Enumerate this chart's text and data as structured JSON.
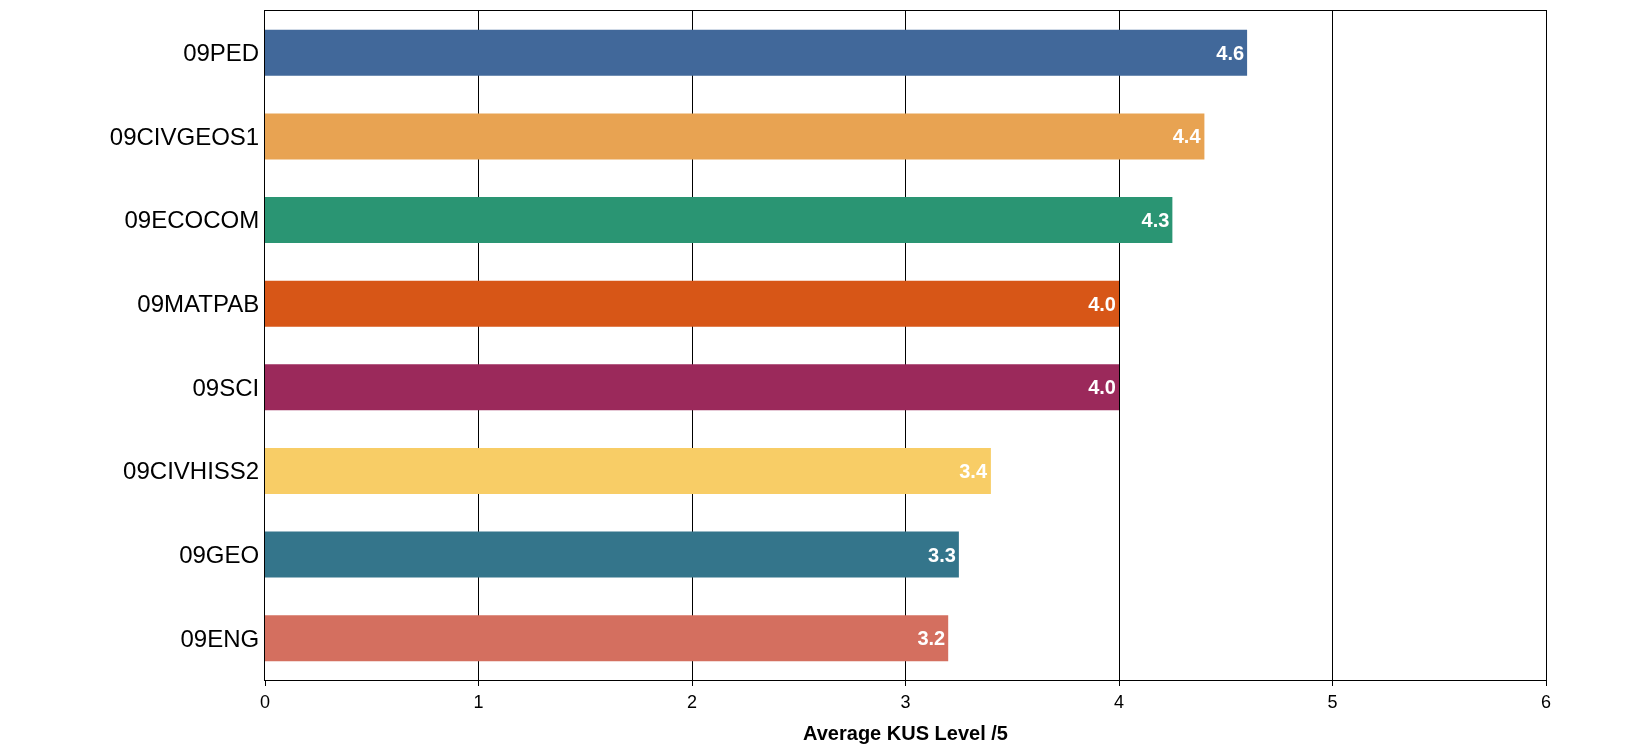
{
  "chart_data": {
    "type": "bar",
    "orientation": "horizontal",
    "xlabel": "Average KUS Level /5",
    "categories": [
      "09PED",
      "09CIVGEOS1",
      "09ECOCOM",
      "09MATPAB",
      "09SCI",
      "09CIVHISS2",
      "09GEO",
      "09ENG"
    ],
    "values": [
      4.6,
      4.4,
      4.25,
      4.0,
      4.0,
      3.4,
      3.25,
      3.2
    ],
    "value_labels": [
      "4.6",
      "4.4",
      "4.3",
      "4.0",
      "4.0",
      "3.4",
      "3.3",
      "3.2"
    ],
    "colors": [
      "#41689a",
      "#e8a352",
      "#2a9573",
      "#d75617",
      "#9b295b",
      "#f8cd66",
      "#34758b",
      "#d46f5f"
    ],
    "xlim": [
      0,
      6
    ],
    "xticks": [
      0,
      1,
      2,
      3,
      4,
      5,
      6
    ],
    "grid": "x"
  }
}
